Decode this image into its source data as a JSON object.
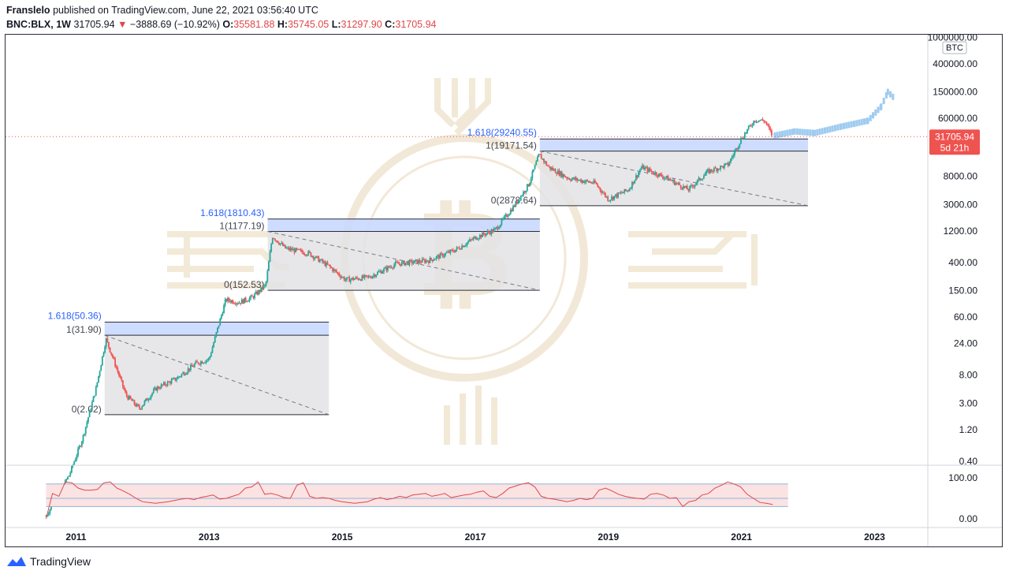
{
  "header": {
    "publisher": "Franslelo",
    "published_text": "published on TradingView.com, June 22, 2021 03:56:40 UTC",
    "symbol": "BNC:BLX, 1W",
    "last": "31705.94",
    "change": "−3888.69 (−10.92%)",
    "o_label": "O:",
    "o": "35581.88",
    "h_label": "H:",
    "h": "35745.05",
    "l_label": "L:",
    "l": "31297.90",
    "c_label": "C:",
    "c": "31705.94"
  },
  "footer": {
    "brand": "TradingView"
  },
  "colors": {
    "up": "#26a69a",
    "down": "#ef5350",
    "fib_band": "#c9d8ff",
    "fib_box": "#e3e3e5",
    "price_badge": "#ef5350",
    "rsi_line": "#e0464a",
    "rsi_band": "#fbe3e3",
    "projection": "#9ecbf0",
    "fib_label": "#2962ff",
    "watermark": "#e8d7b7"
  },
  "chart_data": {
    "type": "candlestick",
    "title": "",
    "y_scale": "log",
    "price_axis_unit": "BTC",
    "y_ticks": [
      "1000000.00",
      "400000.00",
      "150000.00",
      "60000.00",
      "8000.00",
      "3000.00",
      "1200.00",
      "400.00",
      "150.00",
      "60.00",
      "24.00",
      "8.00",
      "3.00",
      "1.20",
      "0.40"
    ],
    "x_ticks": [
      "2011",
      "2013",
      "2015",
      "2017",
      "2019",
      "2021",
      "2023"
    ],
    "last_price_badge": {
      "price": "31705.94",
      "countdown": "5d 21h"
    },
    "price_path": [
      {
        "x": 2010.55,
        "y": 0.06
      },
      {
        "x": 2010.9,
        "y": 0.25
      },
      {
        "x": 2011.1,
        "y": 0.9
      },
      {
        "x": 2011.3,
        "y": 5
      },
      {
        "x": 2011.45,
        "y": 28
      },
      {
        "x": 2011.55,
        "y": 15
      },
      {
        "x": 2011.75,
        "y": 4
      },
      {
        "x": 2011.95,
        "y": 2.5
      },
      {
        "x": 2012.2,
        "y": 5
      },
      {
        "x": 2012.5,
        "y": 7
      },
      {
        "x": 2012.8,
        "y": 12
      },
      {
        "x": 2013.0,
        "y": 14
      },
      {
        "x": 2013.25,
        "y": 110
      },
      {
        "x": 2013.45,
        "y": 100
      },
      {
        "x": 2013.65,
        "y": 120
      },
      {
        "x": 2013.85,
        "y": 180
      },
      {
        "x": 2013.95,
        "y": 1000
      },
      {
        "x": 2014.15,
        "y": 650
      },
      {
        "x": 2014.5,
        "y": 550
      },
      {
        "x": 2014.8,
        "y": 350
      },
      {
        "x": 2015.05,
        "y": 220
      },
      {
        "x": 2015.4,
        "y": 240
      },
      {
        "x": 2015.8,
        "y": 380
      },
      {
        "x": 2016.3,
        "y": 430
      },
      {
        "x": 2016.7,
        "y": 620
      },
      {
        "x": 2017.0,
        "y": 950
      },
      {
        "x": 2017.3,
        "y": 1250
      },
      {
        "x": 2017.6,
        "y": 3000
      },
      {
        "x": 2017.8,
        "y": 6000
      },
      {
        "x": 2017.96,
        "y": 17000
      },
      {
        "x": 2018.1,
        "y": 11000
      },
      {
        "x": 2018.4,
        "y": 7500
      },
      {
        "x": 2018.8,
        "y": 6300
      },
      {
        "x": 2019.0,
        "y": 3600
      },
      {
        "x": 2019.3,
        "y": 5000
      },
      {
        "x": 2019.5,
        "y": 11000
      },
      {
        "x": 2019.9,
        "y": 7300
      },
      {
        "x": 2020.2,
        "y": 5000
      },
      {
        "x": 2020.5,
        "y": 9500
      },
      {
        "x": 2020.8,
        "y": 12000
      },
      {
        "x": 2021.0,
        "y": 30000
      },
      {
        "x": 2021.2,
        "y": 57000
      },
      {
        "x": 2021.35,
        "y": 55000
      },
      {
        "x": 2021.47,
        "y": 31705.94
      }
    ],
    "projection": [
      {
        "x": 2021.5,
        "y": 33000
      },
      {
        "x": 2021.8,
        "y": 38000
      },
      {
        "x": 2022.1,
        "y": 36000
      },
      {
        "x": 2022.5,
        "y": 45000
      },
      {
        "x": 2022.9,
        "y": 55000
      },
      {
        "x": 2023.1,
        "y": 90000
      },
      {
        "x": 2023.2,
        "y": 150000
      },
      {
        "x": 2023.3,
        "y": 120000
      }
    ],
    "fib_boxes": [
      {
        "x0": 2011.43,
        "x1": 2014.8,
        "p0": 2.02,
        "p1": 31.9,
        "p1618": 50.36,
        "label_0": "0(2.02)",
        "label_1": "1(31.90)",
        "label_1618": "1.618(50.36)"
      },
      {
        "x0": 2013.88,
        "x1": 2017.97,
        "p0": 152.53,
        "p1": 1177.19,
        "p1618": 1810.43,
        "label_0": "0(152.53)",
        "label_1": "1(1177.19)",
        "label_1618": "1.618(1810.43)"
      },
      {
        "x0": 2017.97,
        "x1": 2022.0,
        "p0": 2878.64,
        "p1": 19171.54,
        "p1618": 29240.55,
        "label_0": "0(2878.64)",
        "label_1": "1(19171.54)",
        "label_1618": "1.618(29240.55)"
      }
    ],
    "rsi": {
      "y_ticks": [
        "100.00",
        "0.00"
      ],
      "band": [
        30,
        70
      ],
      "values": [
        0,
        62,
        55,
        90,
        88,
        75,
        70,
        70,
        72,
        88,
        90,
        75,
        68,
        60,
        50,
        42,
        40,
        38,
        40,
        42,
        45,
        48,
        50,
        47,
        52,
        55,
        58,
        48,
        50,
        55,
        60,
        75,
        78,
        90,
        60,
        62,
        58,
        52,
        50,
        82,
        88,
        55,
        50,
        52,
        50,
        45,
        42,
        40,
        38,
        40,
        42,
        48,
        52,
        47,
        50,
        55,
        52,
        58,
        60,
        62,
        55,
        58,
        62,
        52,
        55,
        58,
        60,
        65,
        68,
        55,
        52,
        62,
        75,
        80,
        85,
        88,
        78,
        55,
        50,
        48,
        45,
        42,
        45,
        50,
        47,
        50,
        70,
        75,
        68,
        60,
        55,
        52,
        50,
        48,
        60,
        62,
        58,
        50,
        52,
        30,
        42,
        45,
        58,
        62,
        75,
        82,
        90,
        85,
        78,
        60,
        50,
        40,
        38,
        35
      ]
    }
  }
}
